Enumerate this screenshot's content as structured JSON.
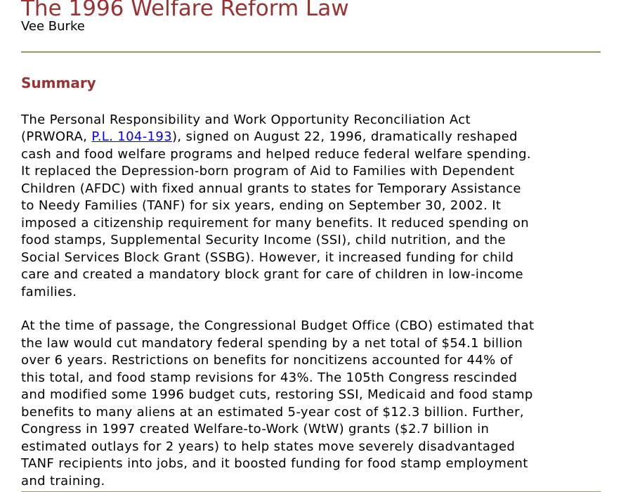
{
  "document": {
    "title": "The 1996 Welfare Reform Law",
    "author": "Vee Burke",
    "summary_heading": "Summary"
  },
  "colors": {
    "heading_red": "#993333",
    "link_blue": "#0000EE",
    "divider_olive": "#999966",
    "body_text": "#000000"
  },
  "paragraph1": {
    "l01": "The Personal Responsibility and Work Opportunity Reconciliation Act",
    "l02_pre": "(PRWORA, ",
    "l02_link": "P.L. 104-193",
    "l02_post": "), signed on August 22, 1996, dramatically reshaped",
    "l03": "cash and food welfare programs and helped reduce federal welfare spending.",
    "l04": "It replaced the Depression-born program of Aid to Families with Dependent",
    "l05": "Children (AFDC) with fixed annual grants to states for Temporary Assistance",
    "l06": "to Needy Families (TANF) for six years, ending on September 30, 2002. It",
    "l07": "imposed a citizenship requirement for many benefits. It reduced spending on",
    "l08": "food stamps, Supplemental Security Income (SSI), child nutrition, and the",
    "l09": "Social Services Block Grant (SSBG). However, it increased funding for child",
    "l10": "care and created a mandatory block grant for care of children in low-income",
    "l11": "families."
  },
  "paragraph2": {
    "l01": "At the time of passage, the Congressional Budget Office (CBO) estimated that",
    "l02": "the law would cut mandatory federal spending by a net total of $54.1 billion",
    "l03": "over 6 years. Restrictions on benefits for noncitizens accounted for 44% of",
    "l04": "this total, and food stamp revisions for 43%. The 105th Congress rescinded",
    "l05": "and modified some 1996 budget cuts, restoring SSI, Medicaid and food stamp",
    "l06": "benefits to many aliens at an estimated 5-year cost of $12.3 billion. Further,",
    "l07": "Congress in 1997 created Welfare-to-Work (WtW) grants ($2.7 billion in",
    "l08": "estimated outlays for 2 years) to help states move severely disadvantaged",
    "l09": "TANF recipients into jobs, and it boosted funding for food stamp employment",
    "l10": "and training."
  }
}
